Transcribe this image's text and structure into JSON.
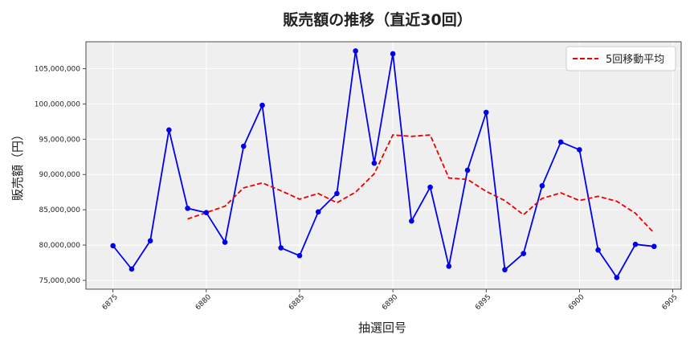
{
  "chart_data": {
    "type": "line",
    "title": "販売額の推移（直近30回）",
    "xlabel": "抽選回号",
    "ylabel": "販売額（円）",
    "xlim": [
      6873.55,
      6905.45
    ],
    "ylim": [
      73750000,
      108800000
    ],
    "xticks": [
      6875,
      6880,
      6885,
      6890,
      6895,
      6900,
      6905
    ],
    "yticks": [
      75000000,
      80000000,
      85000000,
      90000000,
      95000000,
      100000000,
      105000000
    ],
    "ytick_labels": [
      "75,000,000",
      "80,000,000",
      "85,000,000",
      "90,000,000",
      "95,000,000",
      "100,000,000",
      "105,000,000"
    ],
    "grid": true,
    "legend_position": "top-right",
    "series": [
      {
        "style": "solid-markers",
        "color": "#0000ee",
        "x": [
          6875,
          6876,
          6877,
          6878,
          6879,
          6880,
          6881,
          6882,
          6883,
          6884,
          6885,
          6886,
          6887,
          6888,
          6889,
          6890,
          6891,
          6892,
          6893,
          6894,
          6895,
          6896,
          6897,
          6898,
          6899,
          6900,
          6901,
          6902,
          6903,
          6904
        ],
        "values": [
          79900000,
          76600000,
          80600000,
          96300000,
          85200000,
          84600000,
          80400000,
          94000000,
          99800000,
          79600000,
          78500000,
          84700000,
          87300000,
          107500000,
          91600000,
          107100000,
          83400000,
          88200000,
          77000000,
          90600000,
          98800000,
          76500000,
          78800000,
          88400000,
          94600000,
          93500000,
          79300000,
          75400000,
          80100000,
          79800000
        ]
      },
      {
        "name": "5回移動平均",
        "style": "dashed",
        "color": "#ee0000",
        "x": [
          6879,
          6880,
          6881,
          6882,
          6883,
          6884,
          6885,
          6886,
          6887,
          6888,
          6889,
          6890,
          6891,
          6892,
          6893,
          6894,
          6895,
          6896,
          6897,
          6898,
          6899,
          6900,
          6901,
          6902,
          6903,
          6904
        ],
        "values": [
          83700000,
          84600000,
          85500000,
          88100000,
          88800000,
          87700000,
          86500000,
          87300000,
          86000000,
          87500000,
          90100000,
          95600000,
          95400000,
          95600000,
          89500000,
          89300000,
          87600000,
          86300000,
          84300000,
          86600000,
          87400000,
          86300000,
          86900000,
          86200000,
          84500000,
          81700000
        ]
      }
    ]
  },
  "colors": {
    "plot_background": "#efefef",
    "grid": "#ffffff"
  }
}
